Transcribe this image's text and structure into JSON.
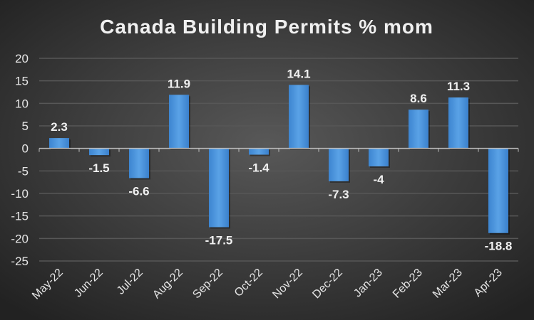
{
  "chart_data": {
    "type": "bar",
    "title": "Canada Building Permits % mom",
    "xlabel": "",
    "ylabel": "",
    "categories": [
      "May-22",
      "Jun-22",
      "Jul-22",
      "Aug-22",
      "Sep-22",
      "Oct-22",
      "Nov-22",
      "Dec-22",
      "Jan-23",
      "Feb-23",
      "Mar-23",
      "Apr-23"
    ],
    "values": [
      2.3,
      -1.5,
      -6.6,
      11.9,
      -17.5,
      -1.4,
      14.1,
      -7.3,
      -4,
      8.6,
      11.3,
      -18.8
    ],
    "data_labels": [
      "2.3",
      "-1.5",
      "-6.6",
      "11.9",
      "-17.5",
      "-1.4",
      "14.1",
      "-7.3",
      "-4",
      "8.6",
      "11.3",
      "-18.8"
    ],
    "ylim": [
      -25,
      20
    ],
    "yticks": [
      20,
      15,
      10,
      5,
      0,
      -5,
      -10,
      -15,
      -20,
      -25
    ],
    "grid": true,
    "legend": "none",
    "colors": {
      "bar": "#4a90d9",
      "background": "#3a3a3a",
      "text": "#e8e8e8",
      "grid": "#555555"
    }
  }
}
